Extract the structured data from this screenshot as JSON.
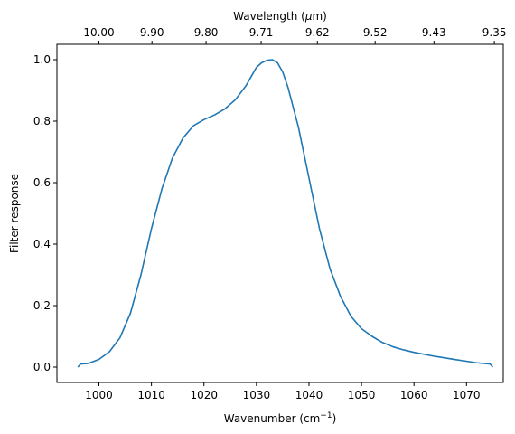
{
  "chart_data": {
    "type": "line",
    "xlabel": "Wavenumber (cm",
    "xlabel_sup": "−1",
    "xlabel_close": ")",
    "ylabel": "Filter response",
    "top_xlabel_prefix": "Wavelength (",
    "top_xlabel_mu": "μ",
    "top_xlabel_suffix": "m)",
    "xlim": [
      992,
      1077
    ],
    "ylim": [
      -0.05,
      1.05
    ],
    "grid": false,
    "line_color": "#1f77b4",
    "x_ticks": [
      1000,
      1010,
      1020,
      1030,
      1040,
      1050,
      1060,
      1070
    ],
    "y_ticks": [
      0.0,
      0.2,
      0.4,
      0.6,
      0.8,
      1.0
    ],
    "y_tick_labels": [
      "0.0",
      "0.2",
      "0.4",
      "0.6",
      "0.8",
      "1.0"
    ],
    "top_ticks": [
      {
        "label": "10.00",
        "wavenumber": 1000.0
      },
      {
        "label": "9.90",
        "wavenumber": 1010.1
      },
      {
        "label": "9.80",
        "wavenumber": 1020.4
      },
      {
        "label": "9.71",
        "wavenumber": 1030.9
      },
      {
        "label": "9.62",
        "wavenumber": 1041.6
      },
      {
        "label": "9.52",
        "wavenumber": 1052.6
      },
      {
        "label": "9.43",
        "wavenumber": 1063.8
      },
      {
        "label": "9.35",
        "wavenumber": 1075.3
      }
    ],
    "series": [
      {
        "x": [
          996.0,
          996.5,
          998.0,
          1000.0,
          1002.0,
          1004.0,
          1006.0,
          1008.0,
          1010.0,
          1012.0,
          1014.0,
          1016.0,
          1018.0,
          1020.0,
          1022.0,
          1024.0,
          1026.0,
          1028.0,
          1029.0,
          1030.0,
          1031.0,
          1032.0,
          1033.0,
          1034.0,
          1035.0,
          1036.0,
          1038.0,
          1040.0,
          1042.0,
          1044.0,
          1046.0,
          1048.0,
          1050.0,
          1052.0,
          1054.0,
          1056.0,
          1058.0,
          1060.0,
          1064.0,
          1068.0,
          1072.0,
          1074.5,
          1075.0
        ],
        "y": [
          0.0,
          0.01,
          0.012,
          0.025,
          0.05,
          0.095,
          0.175,
          0.3,
          0.45,
          0.58,
          0.68,
          0.745,
          0.785,
          0.805,
          0.82,
          0.84,
          0.87,
          0.915,
          0.945,
          0.975,
          0.99,
          0.998,
          1.0,
          0.99,
          0.96,
          0.91,
          0.78,
          0.615,
          0.45,
          0.32,
          0.23,
          0.165,
          0.125,
          0.1,
          0.08,
          0.066,
          0.056,
          0.048,
          0.035,
          0.024,
          0.014,
          0.01,
          0.0
        ]
      }
    ]
  }
}
